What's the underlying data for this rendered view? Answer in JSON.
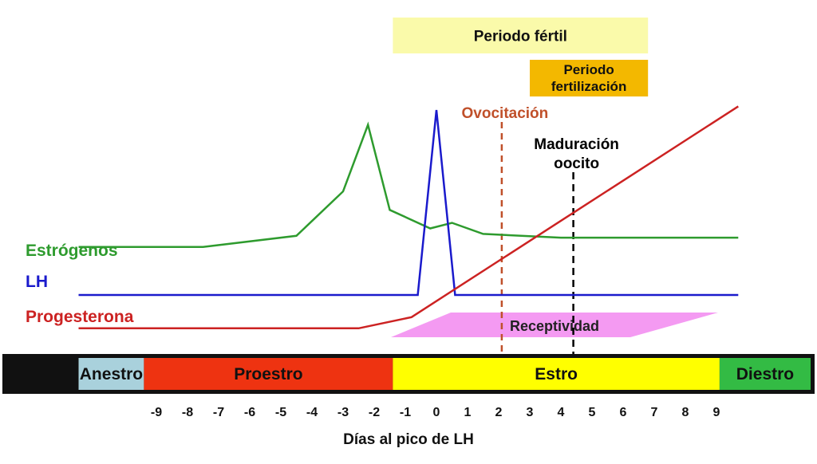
{
  "chart_data": {
    "type": "line",
    "xlabel": "Días al pico de LH",
    "x_ticks": [
      "-9",
      "-8",
      "-7",
      "-6",
      "-5",
      "-4",
      "-3",
      "-2",
      "-1",
      "0",
      "1",
      "2",
      "3",
      "4",
      "5",
      "6",
      "7",
      "8",
      "9"
    ],
    "series": [
      {
        "name": "Estrógenos",
        "color": "#2e9b2e",
        "points": [
          [
            -11.5,
            0.26
          ],
          [
            -7.5,
            0.26
          ],
          [
            -4.5,
            0.32
          ],
          [
            -3.0,
            0.56
          ],
          [
            -2.2,
            0.92
          ],
          [
            -1.5,
            0.46
          ],
          [
            -0.2,
            0.36
          ],
          [
            0.5,
            0.39
          ],
          [
            1.5,
            0.33
          ],
          [
            4.0,
            0.31
          ],
          [
            9.7,
            0.31
          ]
        ]
      },
      {
        "name": "LH",
        "color": "#1a1acc",
        "points": [
          [
            -11.5,
            0.0
          ],
          [
            -0.6,
            0.0
          ],
          [
            0.0,
            1.0
          ],
          [
            0.6,
            0.0
          ],
          [
            9.7,
            0.0
          ]
        ]
      },
      {
        "name": "Progesterona",
        "color": "#cc2222",
        "points": [
          [
            -11.5,
            -0.18
          ],
          [
            -2.5,
            -0.18
          ],
          [
            -0.8,
            -0.12
          ],
          [
            9.7,
            1.02
          ]
        ]
      }
    ],
    "markers": [
      {
        "label": "Ovocitación",
        "x": 2.1,
        "color": "#c0502a"
      },
      {
        "label_lines": [
          "Maduración",
          "oocito"
        ],
        "x": 4.4,
        "color": "#000000"
      }
    ],
    "bands": [
      {
        "label": "Periodo fértil",
        "x_start": -1.4,
        "x_end": 6.8,
        "color": "#fafaaa"
      },
      {
        "label_lines": [
          "Periodo",
          "fertilización"
        ],
        "x_start": 3.0,
        "x_end": 6.8,
        "color": "#f3b800"
      }
    ],
    "receptivity": {
      "label": "Receptividad",
      "color": "#f49af2"
    },
    "phases": [
      {
        "label": "Anestro",
        "x_start": -11.5,
        "x_end": -9.4,
        "color": "#a9d1dc"
      },
      {
        "label": "Proestro",
        "x_start": -9.4,
        "x_end": -1.4,
        "color": "#ee3311"
      },
      {
        "label": "Estro",
        "x_start": -1.4,
        "x_end": 9.1,
        "color": "#ffff00"
      },
      {
        "label": "Diestro",
        "x_start": 9.1,
        "x_end": 12.4,
        "color": "#33bb44"
      }
    ]
  }
}
